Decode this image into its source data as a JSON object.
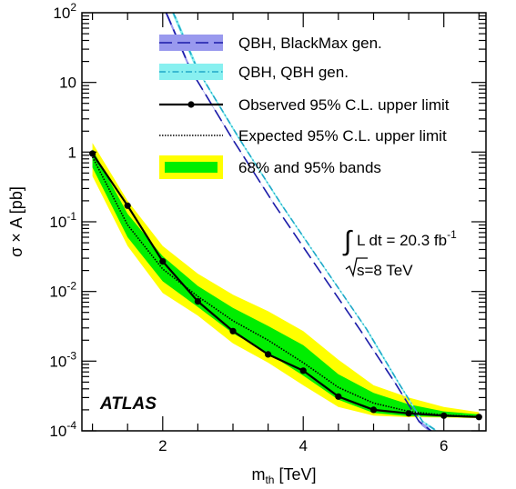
{
  "chart_data": {
    "type": "line",
    "xlabel": {
      "main": "m",
      "sub": "th",
      "unit": " [TeV]"
    },
    "ylabel": "σ × A [pb]",
    "xlim": [
      0.85,
      6.6
    ],
    "ylim": [
      0.0001,
      100
    ],
    "yscale": "log",
    "x_ticks": [
      2,
      4,
      6
    ],
    "x_tick_labels": [
      "2",
      "4",
      "6"
    ],
    "y_ticks": [
      {
        "value": 100,
        "base": "10",
        "exp": "2"
      },
      {
        "value": 10,
        "base": "10",
        "exp": ""
      },
      {
        "value": 1,
        "base": "1",
        "exp": ""
      },
      {
        "value": 0.1,
        "base": "10",
        "exp": "-1"
      },
      {
        "value": 0.01,
        "base": "10",
        "exp": "-2"
      },
      {
        "value": 0.001,
        "base": "10",
        "exp": "-3"
      },
      {
        "value": 0.0001,
        "base": "10",
        "exp": "-4"
      }
    ],
    "experiment_label": "ATLAS",
    "lumi_label": {
      "prefix": "L dt = 20.3 fb",
      "sup": "-1"
    },
    "energy_label": {
      "radical": "s",
      "suffix": "=8 TeV"
    },
    "legend": [
      {
        "key": "blackmax",
        "label": "QBH, BlackMax gen."
      },
      {
        "key": "qbh",
        "label": "QBH, QBH gen."
      },
      {
        "key": "observed",
        "label": "Observed 95% C.L. upper limit"
      },
      {
        "key": "expected",
        "label": "Expected 95% C.L. upper limit"
      },
      {
        "key": "bands",
        "label": "68% and 95% bands"
      }
    ],
    "colors": {
      "blackmax_band": "#9999ee",
      "blackmax_line": "#1a1aa8",
      "qbh_band": "#88f0f0",
      "qbh_line": "#20a8c8",
      "band95": "#ffff00",
      "band68": "#00ee00",
      "observed": "#000000",
      "expected": "#000000"
    },
    "series": [
      {
        "name": "Observed 95% C.L. upper limit",
        "x": [
          1.0,
          1.5,
          2.0,
          2.5,
          3.0,
          3.5,
          4.0,
          4.5,
          5.0,
          5.5,
          6.0,
          6.5
        ],
        "values": [
          0.95,
          0.17,
          0.027,
          0.0072,
          0.0027,
          0.00125,
          0.00073,
          0.00031,
          0.0002,
          0.000178,
          0.000165,
          0.000158
        ]
      },
      {
        "name": "Expected 95% C.L. upper limit",
        "x": [
          1.0,
          1.5,
          2.0,
          2.5,
          3.0,
          3.5,
          4.0,
          4.5,
          5.0,
          5.5,
          6.0,
          6.5
        ],
        "values": [
          0.85,
          0.09,
          0.021,
          0.0085,
          0.0038,
          0.002,
          0.00095,
          0.00042,
          0.00025,
          0.00019,
          0.000168,
          0.00016
        ]
      },
      {
        "name": "68% and 95% bands",
        "x": [
          1.0,
          1.5,
          2.0,
          2.5,
          3.0,
          3.5,
          4.0,
          4.5,
          5.0,
          5.5,
          6.0,
          6.5
        ],
        "band68_low": [
          0.6,
          0.06,
          0.014,
          0.006,
          0.0025,
          0.0013,
          0.00062,
          0.00028,
          0.00018,
          0.000162,
          0.000158,
          0.000155
        ],
        "band68_high": [
          1.1,
          0.13,
          0.032,
          0.012,
          0.0058,
          0.0032,
          0.0017,
          0.00065,
          0.00035,
          0.00024,
          0.00019,
          0.000172
        ],
        "band95_low": [
          0.45,
          0.045,
          0.0095,
          0.0045,
          0.0018,
          0.00095,
          0.00045,
          0.00022,
          0.000165,
          0.000157,
          0.000155,
          0.000152
        ],
        "band95_high": [
          1.35,
          0.2,
          0.045,
          0.018,
          0.009,
          0.0052,
          0.0027,
          0.00105,
          0.00045,
          0.0003,
          0.00022,
          0.000185
        ]
      },
      {
        "name": "QBH, BlackMax gen.",
        "x": [
          2.05,
          2.4,
          3.0,
          3.6,
          4.2,
          4.8,
          5.3,
          5.65,
          5.82
        ],
        "values": [
          100,
          15,
          1.5,
          0.17,
          0.022,
          0.0029,
          0.0005,
          0.000135,
          0.0001
        ],
        "band_frac": 0.13
      },
      {
        "name": "QBH, QBH gen.",
        "x": [
          2.15,
          2.5,
          3.1,
          3.7,
          4.3,
          4.9,
          5.35,
          5.7,
          5.9
        ],
        "values": [
          100,
          15,
          1.5,
          0.17,
          0.022,
          0.0029,
          0.0005,
          0.000135,
          0.0001
        ],
        "band_frac": 0.1
      }
    ]
  }
}
